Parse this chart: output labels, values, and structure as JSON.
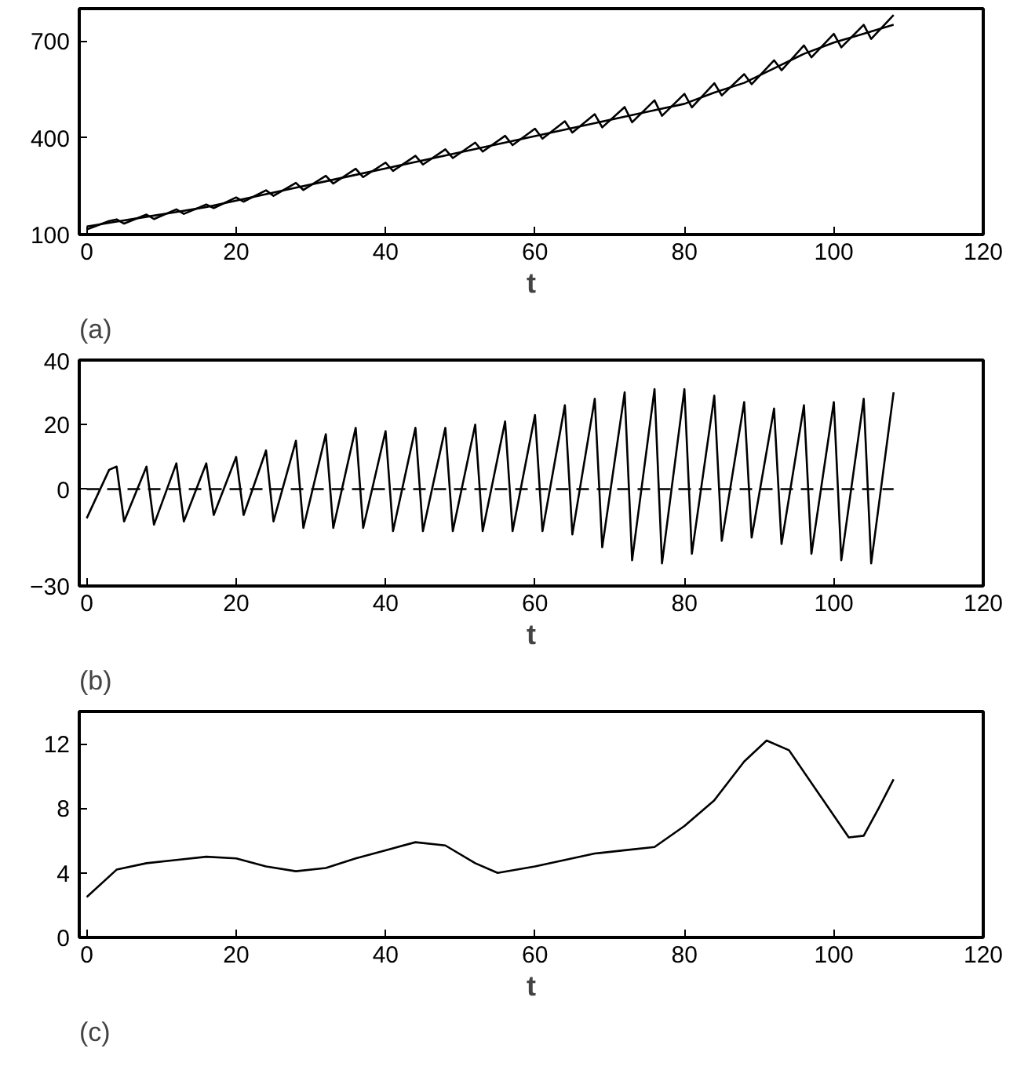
{
  "chart_data": [
    {
      "type": "line",
      "xlabel": "t",
      "annotations": [
        "(a)"
      ],
      "xlim": [
        -1,
        120
      ],
      "xticks": [
        0,
        20,
        40,
        60,
        80,
        100,
        120
      ],
      "ylim": [
        100,
        800
      ],
      "yticks": [
        100,
        400,
        700
      ],
      "series": [
        {
          "color": "#000000",
          "x": [
            0,
            3,
            4,
            5,
            8,
            9,
            12,
            13,
            16,
            17,
            20,
            21,
            24,
            25,
            28,
            29,
            32,
            33,
            36,
            37,
            40,
            41,
            44,
            45,
            48,
            49,
            52,
            53,
            56,
            57,
            60,
            61,
            64,
            65,
            68,
            69,
            72,
            73,
            76,
            77,
            80,
            81,
            84,
            85,
            88,
            89,
            92,
            93,
            96,
            97,
            100,
            101,
            104,
            105,
            108
          ],
          "values": [
            116,
            142,
            147,
            134,
            162,
            148,
            178,
            164,
            193,
            182,
            215,
            202,
            237,
            220,
            260,
            238,
            282,
            258,
            304,
            278,
            323,
            297,
            344,
            317,
            364,
            337,
            385,
            357,
            406,
            377,
            428,
            397,
            451,
            416,
            473,
            432,
            495,
            448,
            516,
            468,
            536,
            494,
            569,
            531,
            597,
            566,
            640,
            609,
            686,
            649,
            722,
            680,
            750,
            706,
            780
          ]
        },
        {
          "color": "#000000",
          "x": [
            0,
            4,
            8,
            12,
            16,
            20,
            24,
            28,
            32,
            36,
            40,
            44,
            48,
            52,
            56,
            60,
            64,
            68,
            72,
            76,
            80,
            84,
            88,
            92,
            96,
            100,
            104,
            108
          ],
          "values": [
            125,
            140,
            155,
            170,
            185,
            205,
            225,
            245,
            265,
            285,
            305,
            325,
            345,
            365,
            385,
            405,
            425,
            445,
            465,
            485,
            505,
            540,
            570,
            615,
            660,
            695,
            722,
            750
          ]
        }
      ]
    },
    {
      "type": "line",
      "xlabel": "t",
      "annotations": [
        "(b)"
      ],
      "xlim": [
        -1,
        120
      ],
      "xticks": [
        0,
        20,
        40,
        60,
        80,
        100,
        120
      ],
      "ylim": [
        -30,
        40
      ],
      "yticks": [
        -30,
        0,
        20,
        40
      ],
      "series": [
        {
          "color": "#000000",
          "x": [
            0,
            3,
            4,
            5,
            8,
            9,
            12,
            13,
            16,
            17,
            20,
            21,
            24,
            25,
            28,
            29,
            32,
            33,
            36,
            37,
            40,
            41,
            44,
            45,
            48,
            49,
            52,
            53,
            56,
            57,
            60,
            61,
            64,
            65,
            68,
            69,
            72,
            73,
            76,
            77,
            80,
            81,
            84,
            85,
            88,
            89,
            92,
            93,
            96,
            97,
            100,
            101,
            104,
            105,
            108
          ],
          "values": [
            -9,
            6,
            7,
            -10,
            7,
            -11,
            8,
            -10,
            8,
            -8,
            10,
            -8,
            12,
            -10,
            15,
            -12,
            17,
            -12,
            19,
            -12,
            18,
            -13,
            19,
            -13,
            19,
            -13,
            20,
            -13,
            21,
            -13,
            23,
            -13,
            26,
            -14,
            28,
            -18,
            30,
            -22,
            31,
            -23,
            31,
            -20,
            29,
            -16,
            27,
            -15,
            25,
            -17,
            26,
            -20,
            27,
            -22,
            28,
            -23,
            30
          ]
        },
        {
          "color": "#000000",
          "line_style": "dashed",
          "x": [
            0,
            108
          ],
          "values": [
            0,
            0
          ]
        }
      ]
    },
    {
      "type": "line",
      "xlabel": "t",
      "annotations": [
        "(c)"
      ],
      "xlim": [
        -1,
        120
      ],
      "xticks": [
        0,
        20,
        40,
        60,
        80,
        100,
        120
      ],
      "ylim": [
        0,
        14
      ],
      "yticks": [
        0,
        4,
        8,
        12
      ],
      "series": [
        {
          "color": "#000000",
          "x": [
            0,
            4,
            8,
            12,
            16,
            20,
            24,
            28,
            32,
            36,
            40,
            44,
            48,
            52,
            55,
            60,
            64,
            68,
            72,
            76,
            80,
            84,
            88,
            91,
            94,
            98,
            102,
            104,
            106,
            108
          ],
          "values": [
            2.5,
            4.2,
            4.6,
            4.8,
            5.0,
            4.9,
            4.4,
            4.1,
            4.3,
            4.9,
            5.4,
            5.9,
            5.7,
            4.6,
            4.0,
            4.4,
            4.8,
            5.2,
            5.4,
            5.6,
            6.9,
            8.5,
            10.9,
            12.2,
            11.6,
            8.9,
            6.2,
            6.3,
            8.0,
            9.8
          ]
        }
      ]
    }
  ]
}
